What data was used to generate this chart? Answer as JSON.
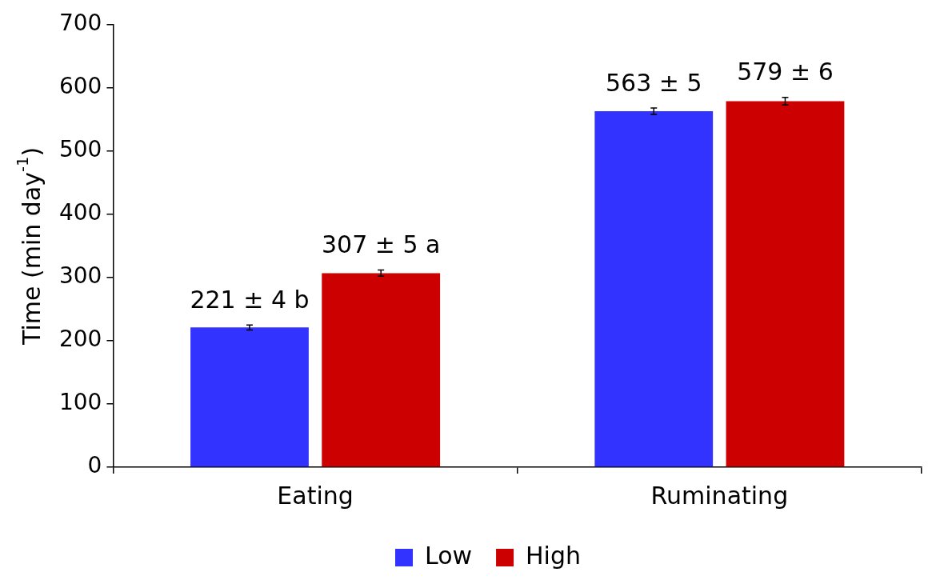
{
  "chart_data": {
    "type": "bar",
    "ylabel": "Time (min day$^{-1}$)",
    "categories": [
      "Eating",
      "Ruminating"
    ],
    "series": [
      {
        "name": "Low",
        "color": "#3333ff",
        "values": [
          221,
          563
        ],
        "errors": [
          4,
          5
        ],
        "value_labels": [
          "221 ± 4 b",
          "563 ± 5"
        ]
      },
      {
        "name": "High",
        "color": "#cc0000",
        "values": [
          307,
          579
        ],
        "errors": [
          5,
          6
        ],
        "value_labels": [
          "307 ± 5 a",
          "579 ± 6"
        ]
      }
    ],
    "ylim": [
      0,
      700
    ],
    "yticks": [
      0,
      100,
      200,
      300,
      400,
      500,
      600,
      700
    ],
    "grid": false,
    "legend": "bottom"
  }
}
